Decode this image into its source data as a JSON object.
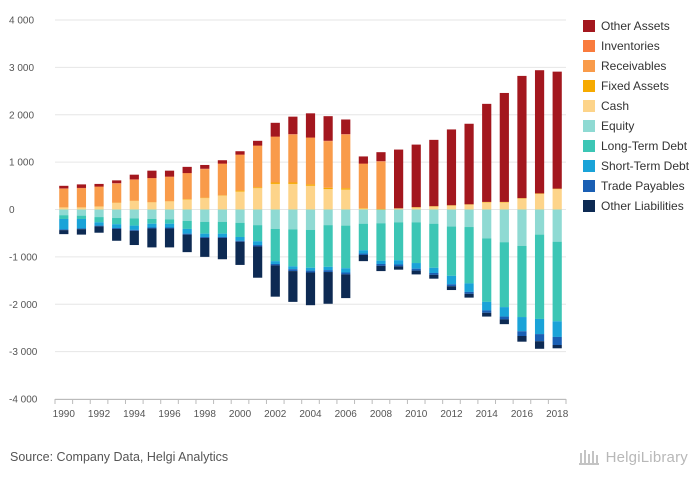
{
  "chart_data": {
    "type": "bar",
    "stacked": true,
    "ylim": [
      -4000,
      4000
    ],
    "yticks": [
      4000,
      3000,
      2000,
      1000,
      0,
      -1000,
      -2000,
      -3000,
      -4000
    ],
    "ytick_labels": [
      "4 000",
      "3 000",
      "2 000",
      "1 000",
      "0",
      "-1 000",
      "-2 000",
      "-3 000",
      "-4 000"
    ],
    "categories": [
      1990,
      1991,
      1992,
      1993,
      1994,
      1995,
      1996,
      1997,
      1998,
      1999,
      2000,
      2001,
      2002,
      2003,
      2004,
      2005,
      2006,
      2007,
      2008,
      2009,
      2010,
      2011,
      2012,
      2013,
      2014,
      2015,
      2016,
      2017,
      2018
    ],
    "xtick_labels": [
      "1990",
      "1992",
      "1994",
      "1996",
      "1998",
      "2000",
      "2002",
      "2004",
      "2006",
      "2008",
      "2010",
      "2012",
      "2014",
      "2016",
      "2018"
    ],
    "grid": true,
    "legend_position": "right",
    "positive_series": [
      {
        "name": "Cash",
        "color": "#fdd48a",
        "values": [
          40,
          40,
          60,
          140,
          180,
          150,
          170,
          210,
          240,
          290,
          380,
          450,
          540,
          540,
          500,
          430,
          420,
          20,
          0,
          20,
          40,
          60,
          80,
          100,
          150,
          150,
          230,
          330,
          430
        ]
      },
      {
        "name": "Fixed Assets",
        "color": "#f6aa00",
        "values": [
          5,
          5,
          5,
          5,
          5,
          5,
          5,
          10,
          10,
          10,
          20,
          20,
          30,
          30,
          30,
          30,
          30,
          10,
          10,
          5,
          10,
          10,
          10,
          10,
          10,
          10,
          10,
          10,
          10
        ]
      },
      {
        "name": "Receivables",
        "color": "#f99b4a",
        "values": [
          390,
          400,
          410,
          400,
          440,
          500,
          510,
          540,
          600,
          660,
          750,
          870,
          960,
          1010,
          980,
          980,
          1130,
          930,
          1000,
          0,
          0,
          0,
          0,
          0,
          0,
          0,
          0,
          0,
          0
        ]
      },
      {
        "name": "Inventories",
        "color": "#f97b3d",
        "values": [
          10,
          10,
          10,
          10,
          10,
          10,
          10,
          10,
          10,
          10,
          10,
          10,
          10,
          10,
          10,
          10,
          10,
          10,
          10,
          0,
          0,
          0,
          0,
          0,
          0,
          0,
          0,
          0,
          0
        ]
      },
      {
        "name": "Other Assets",
        "color": "#a3171e",
        "values": [
          55,
          75,
          55,
          60,
          100,
          155,
          125,
          130,
          80,
          70,
          70,
          100,
          290,
          370,
          510,
          520,
          310,
          150,
          190,
          1240,
          1320,
          1400,
          1600,
          1700,
          2070,
          2300,
          2580,
          2600,
          2470
        ]
      }
    ],
    "negative_series": [
      {
        "name": "Equity",
        "color": "#8fdad3",
        "values": [
          -120,
          -130,
          -160,
          -180,
          -190,
          -200,
          -210,
          -240,
          -260,
          -260,
          -280,
          -330,
          -410,
          -420,
          -430,
          -330,
          -340,
          -300,
          -290,
          -270,
          -270,
          -300,
          -360,
          -370,
          -610,
          -690,
          -770,
          -530,
          -680
        ]
      },
      {
        "name": "Long-Term Debt",
        "color": "#3cc6b5",
        "values": [
          -80,
          -70,
          -110,
          -130,
          -150,
          -100,
          -90,
          -170,
          -250,
          -250,
          -300,
          -340,
          -680,
          -780,
          -800,
          -880,
          -900,
          -560,
          -790,
          -800,
          -860,
          -930,
          -1040,
          -1190,
          -1340,
          -1370,
          -1500,
          -1780,
          -1680
        ]
      },
      {
        "name": "Short-Term Debt",
        "color": "#1aa3d8",
        "values": [
          -220,
          -200,
          -70,
          -80,
          -90,
          -80,
          -80,
          -100,
          -70,
          -70,
          -80,
          -80,
          -60,
          -60,
          -60,
          -70,
          -90,
          -70,
          -70,
          -90,
          -120,
          -110,
          -180,
          -180,
          -180,
          -200,
          -300,
          -320,
          -330
        ]
      },
      {
        "name": "Trade Payables",
        "color": "#1a5fb4",
        "values": [
          -15,
          -15,
          -15,
          -20,
          -20,
          -20,
          -20,
          -20,
          -20,
          -20,
          -20,
          -30,
          -30,
          -40,
          -40,
          -40,
          -40,
          -30,
          -40,
          -40,
          -40,
          -40,
          -40,
          -40,
          -50,
          -60,
          -100,
          -150,
          -170
        ]
      },
      {
        "name": "Other Liabilities",
        "color": "#0d2a53",
        "values": [
          -85,
          -115,
          -135,
          -250,
          -300,
          -400,
          -400,
          -370,
          -400,
          -450,
          -490,
          -660,
          -660,
          -650,
          -690,
          -670,
          -500,
          -130,
          -110,
          -70,
          -80,
          -80,
          -80,
          -80,
          -80,
          -100,
          -120,
          -160,
          -70
        ]
      }
    ],
    "legend_order": [
      "Other Assets",
      "Inventories",
      "Receivables",
      "Fixed Assets",
      "Cash",
      "Equity",
      "Long-Term Debt",
      "Short-Term Debt",
      "Trade Payables",
      "Other Liabilities"
    ]
  },
  "footer": {
    "source": "Source: Company Data, Helgi Analytics",
    "brand": "HelgiLibrary"
  },
  "colors": {
    "grid": "#e6e6e6",
    "axis": "#bbbbbb",
    "tick_text": "#555555"
  }
}
